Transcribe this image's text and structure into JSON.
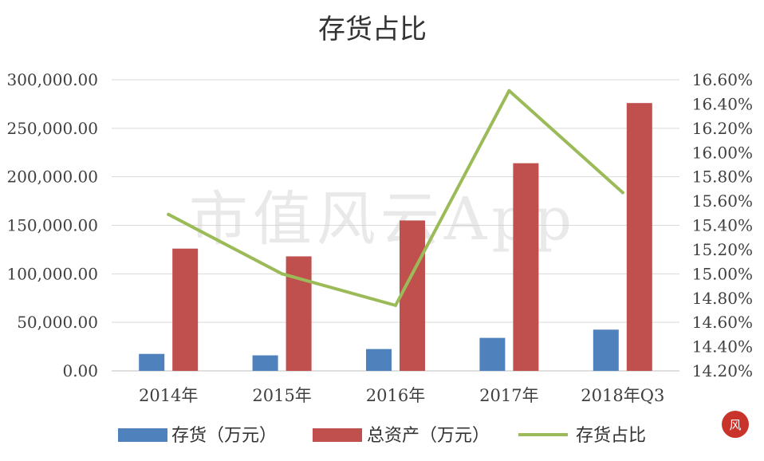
{
  "chart_data": {
    "type": "bar",
    "title": "存货占比",
    "categories": [
      "2014年",
      "2015年",
      "2016年",
      "2017年",
      "2018年Q3"
    ],
    "series": [
      {
        "name": "存货（万元）",
        "kind": "bar",
        "axis": "left",
        "color": "#4F81BD",
        "values": [
          17500,
          16000,
          22500,
          34000,
          42500
        ]
      },
      {
        "name": "总资产（万元）",
        "kind": "bar",
        "axis": "left",
        "color": "#C0504D",
        "values": [
          126000,
          118000,
          155000,
          214000,
          276000
        ]
      },
      {
        "name": "存货占比",
        "kind": "line",
        "axis": "right",
        "color": "#9BBB59",
        "values": [
          15.49,
          15.0,
          14.74,
          16.51,
          15.67
        ]
      }
    ],
    "y_left": {
      "min": 0,
      "max": 300000,
      "step": 50000,
      "tick_labels": [
        "0.00",
        "50,000.00",
        "100,000.00",
        "150,000.00",
        "200,000.00",
        "250,000.00",
        "300,000.00"
      ]
    },
    "y_right": {
      "min": 14.2,
      "max": 16.6,
      "step": 0.2,
      "tick_labels": [
        "14.20%",
        "14.40%",
        "14.60%",
        "14.80%",
        "15.00%",
        "15.20%",
        "15.40%",
        "15.60%",
        "15.80%",
        "16.00%",
        "16.20%",
        "16.40%",
        "16.60%"
      ]
    },
    "grid": true,
    "legend": "bottom",
    "watermark": "市值风云App"
  }
}
